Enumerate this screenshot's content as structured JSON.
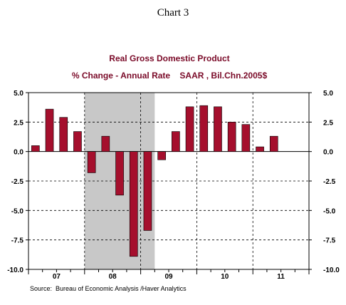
{
  "page": {
    "title": "Chart 3"
  },
  "chart_data": {
    "type": "bar",
    "title": "Real Gross Domestic Product",
    "subtitle": "% Change - Annual Rate    SAAR , Bil.Chn.2005$",
    "source": "Source:  Bureau of Economic Analysis /Haver Analytics",
    "categories": [
      "2007Q1",
      "2007Q2",
      "2007Q3",
      "2007Q4",
      "2008Q1",
      "2008Q2",
      "2008Q3",
      "2008Q4",
      "2009Q1",
      "2009Q2",
      "2009Q3",
      "2009Q4",
      "2010Q1",
      "2010Q2",
      "2010Q3",
      "2010Q4",
      "2011Q1",
      "2011Q2",
      "2011Q3",
      "2011Q4"
    ],
    "series": [
      {
        "values": [
          0.5,
          3.6,
          2.9,
          1.7,
          -1.8,
          1.3,
          -3.7,
          -8.9,
          -6.7,
          -0.7,
          1.7,
          3.8,
          3.9,
          3.8,
          2.5,
          2.3,
          0.4,
          1.3,
          null,
          null
        ]
      }
    ],
    "ylim": [
      -10,
      5
    ],
    "yticks": [
      "5.0",
      "2.5",
      "0.0",
      "-2.5",
      "-5.0",
      "-7.5",
      "-10.0"
    ],
    "ytick_values": [
      5,
      2.5,
      0,
      -2.5,
      -5,
      -7.5,
      -10
    ],
    "xtick_labels": [
      "07",
      "08",
      "09",
      "10",
      "11"
    ],
    "recession_shading": {
      "start_index": 4,
      "end_index": 9,
      "color": "#c8c8c8"
    },
    "bar_color": "#a50f2d",
    "grid": true,
    "legend": "none"
  }
}
